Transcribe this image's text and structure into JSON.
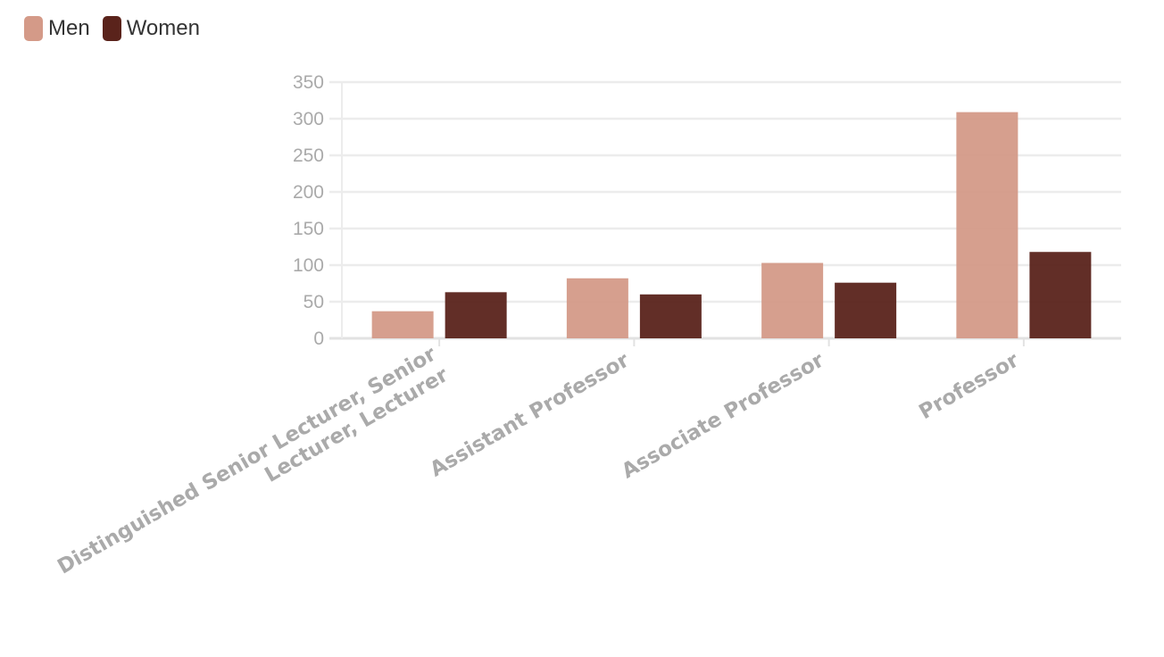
{
  "legend": [
    {
      "name": "Men",
      "color": "#d49a88"
    },
    {
      "name": "Women",
      "color": "#5a231b"
    }
  ],
  "chart_data": {
    "type": "bar",
    "categories": [
      [
        "Distinguished Senior Lecturer, Senior",
        "Lecturer, Lecturer"
      ],
      [
        "Assistant Professor"
      ],
      [
        "Associate Professor"
      ],
      [
        "Professor"
      ]
    ],
    "series": [
      {
        "name": "Men",
        "color": "#d49a88",
        "values": [
          37,
          82,
          103,
          309
        ]
      },
      {
        "name": "Women",
        "color": "#5a231b",
        "values": [
          63,
          60,
          76,
          118
        ]
      }
    ],
    "ylim": [
      0,
      350
    ],
    "yticks": [
      0,
      50,
      100,
      150,
      200,
      250,
      300,
      350
    ],
    "grid": true,
    "legend_position": "top-left"
  }
}
